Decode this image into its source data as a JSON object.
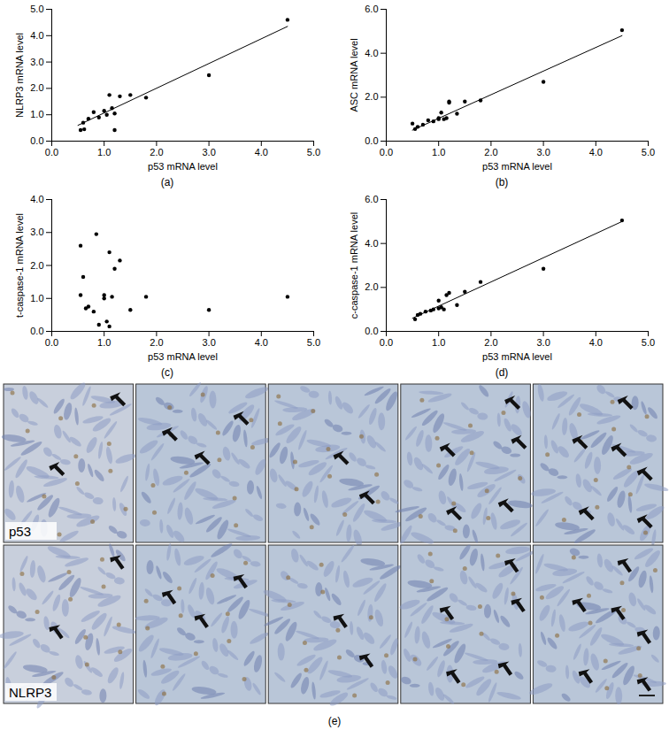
{
  "chart_data": [
    {
      "type": "scatter",
      "caption": "(a)",
      "xlabel": "p53 mRNA level",
      "ylabel": "NLRP3 mRNA level",
      "xlim": [
        0,
        5
      ],
      "xticks": [
        0,
        1,
        2,
        3,
        4,
        5
      ],
      "ylim": [
        0,
        5
      ],
      "yticks": [
        0,
        1,
        2,
        3,
        4,
        5
      ],
      "series": [
        {
          "type": "scatter",
          "marker": "circle",
          "color": "#000000",
          "x": [
            0.55,
            0.62,
            0.6,
            0.7,
            0.8,
            0.9,
            1.0,
            1.05,
            1.1,
            1.15,
            1.2,
            1.2,
            1.3,
            1.5,
            1.8,
            3.0,
            4.5
          ],
          "values": [
            0.42,
            0.45,
            0.7,
            0.85,
            1.1,
            0.9,
            1.15,
            1.0,
            1.75,
            1.25,
            1.05,
            0.42,
            1.7,
            1.75,
            1.65,
            2.5,
            4.6
          ]
        },
        {
          "type": "line",
          "color": "#000000",
          "x": [
            0.5,
            4.5
          ],
          "values": [
            0.6,
            4.35
          ]
        }
      ]
    },
    {
      "type": "scatter",
      "caption": "(b)",
      "xlabel": "p53 mRNA level",
      "ylabel": "ASC mRNA level",
      "xlim": [
        0,
        5
      ],
      "xticks": [
        0,
        1,
        2,
        3,
        4,
        5
      ],
      "ylim": [
        0,
        6
      ],
      "yticks": [
        0,
        2,
        4,
        6
      ],
      "series": [
        {
          "type": "scatter",
          "marker": "circle",
          "color": "#000000",
          "x": [
            0.5,
            0.55,
            0.6,
            0.7,
            0.8,
            0.9,
            1.0,
            1.0,
            1.05,
            1.1,
            1.15,
            1.2,
            1.2,
            1.35,
            1.5,
            1.8,
            3.0,
            4.5
          ],
          "values": [
            0.8,
            0.55,
            0.65,
            0.75,
            0.95,
            0.9,
            1.0,
            1.05,
            1.3,
            1.0,
            1.05,
            1.75,
            1.8,
            1.25,
            1.8,
            1.85,
            2.7,
            5.05
          ]
        },
        {
          "type": "line",
          "color": "#000000",
          "x": [
            0.5,
            4.5
          ],
          "values": [
            0.5,
            4.8
          ]
        }
      ]
    },
    {
      "type": "scatter",
      "caption": "(c)",
      "xlabel": "p53 mRNA level",
      "ylabel": "t-caspase-1 mRNA level",
      "xlim": [
        0,
        5
      ],
      "xticks": [
        0,
        1,
        2,
        3,
        4,
        5
      ],
      "ylim": [
        0,
        4
      ],
      "yticks": [
        0,
        1,
        2,
        3,
        4
      ],
      "series": [
        {
          "type": "scatter",
          "marker": "circle",
          "color": "#000000",
          "x": [
            0.55,
            0.6,
            0.55,
            0.65,
            0.7,
            0.8,
            0.85,
            0.9,
            1.0,
            1.0,
            1.05,
            1.1,
            1.1,
            1.15,
            1.2,
            1.3,
            1.5,
            1.8,
            3.0,
            4.5
          ],
          "values": [
            2.6,
            1.65,
            1.1,
            0.7,
            0.75,
            0.6,
            2.95,
            0.2,
            1.0,
            1.1,
            0.3,
            0.15,
            2.4,
            1.05,
            1.9,
            2.15,
            0.65,
            1.05,
            0.65,
            1.05
          ]
        }
      ]
    },
    {
      "type": "scatter",
      "caption": "(d)",
      "xlabel": "p53 mRNA level",
      "ylabel": "c-caspase-1 mRNA level",
      "xlim": [
        0,
        5
      ],
      "xticks": [
        0,
        1,
        2,
        3,
        4,
        5
      ],
      "ylim": [
        0,
        6
      ],
      "yticks": [
        0,
        2,
        4,
        6
      ],
      "series": [
        {
          "type": "scatter",
          "marker": "circle",
          "color": "#000000",
          "x": [
            0.55,
            0.6,
            0.65,
            0.75,
            0.85,
            0.9,
            1.0,
            1.0,
            1.05,
            1.1,
            1.15,
            1.2,
            1.35,
            1.5,
            1.8,
            3.0,
            4.5
          ],
          "values": [
            0.55,
            0.75,
            0.8,
            0.9,
            0.95,
            1.0,
            1.05,
            1.4,
            1.1,
            1.0,
            1.65,
            1.75,
            1.2,
            1.8,
            2.25,
            2.85,
            5.05
          ]
        },
        {
          "type": "line",
          "color": "#000000",
          "x": [
            0.5,
            4.5
          ],
          "values": [
            0.6,
            5.0
          ]
        }
      ]
    }
  ],
  "micrographs": {
    "caption": "(e)",
    "row_labels": [
      "p53",
      "NLRP3"
    ],
    "columns": 5
  }
}
